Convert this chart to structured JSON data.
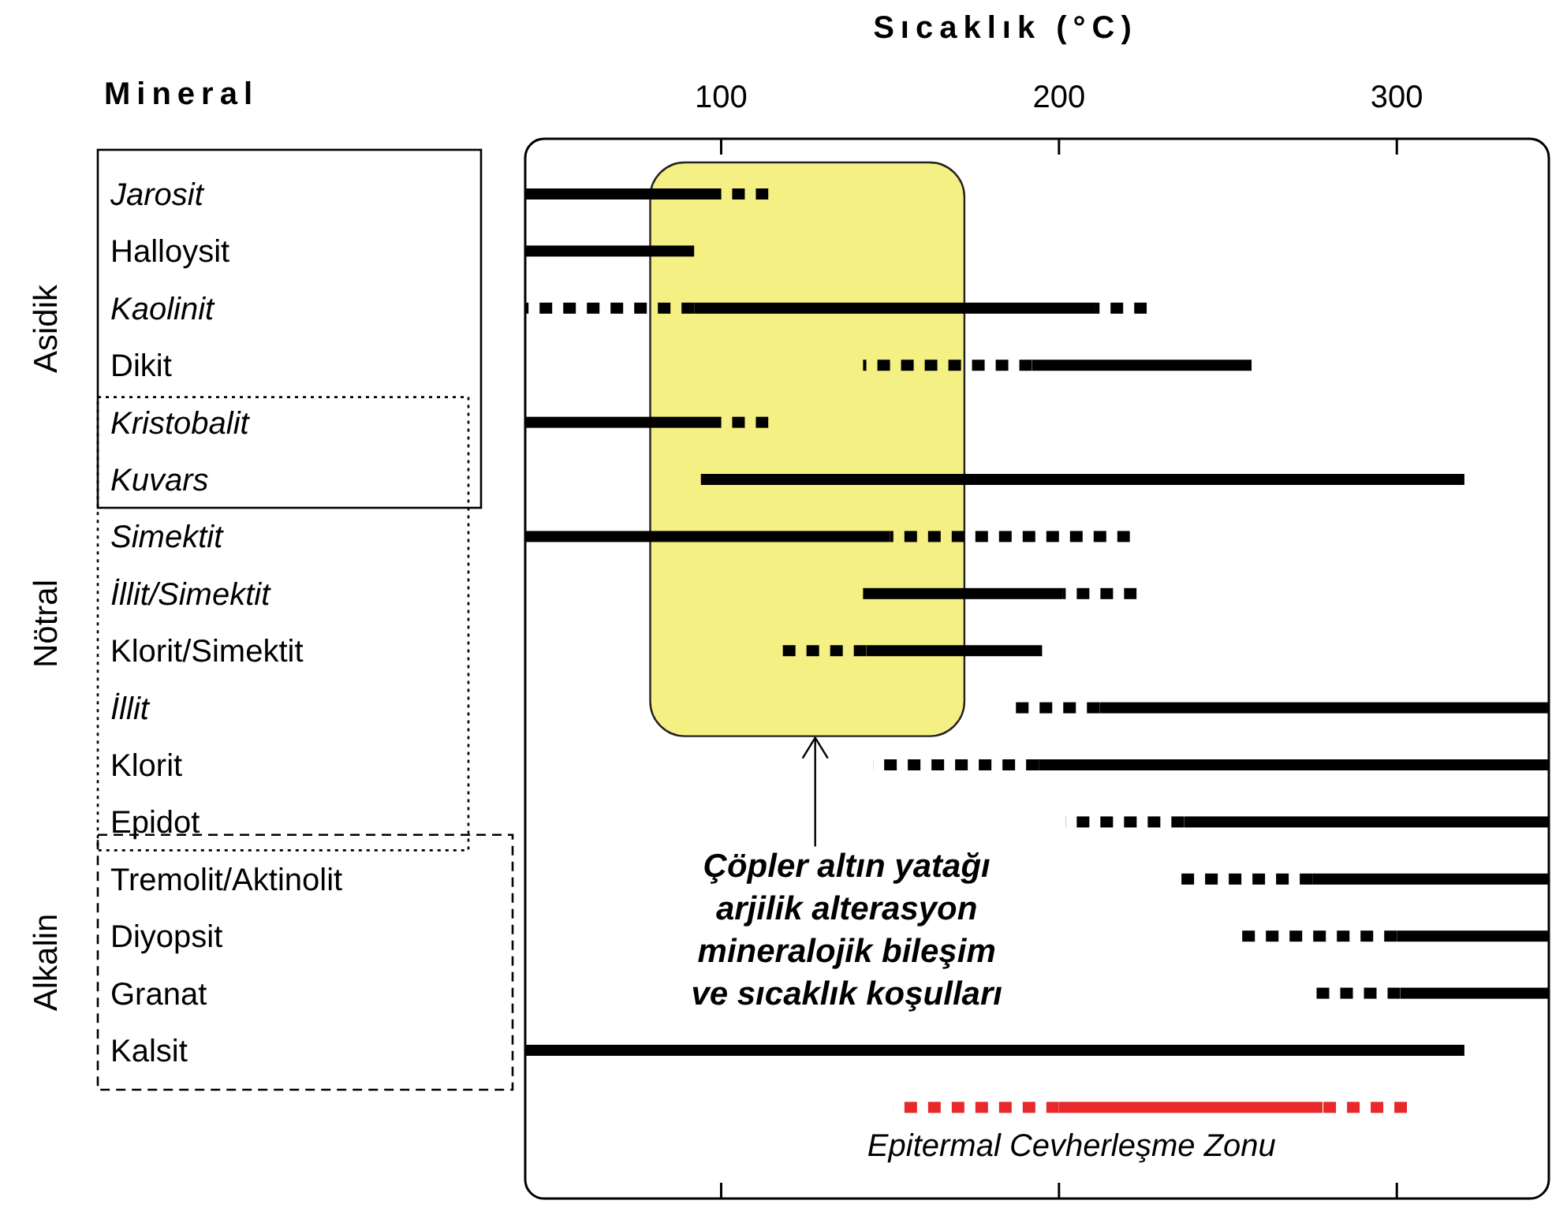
{
  "chart_data": {
    "type": "bar",
    "orientation": "horizontal",
    "xlabel": "Sıcaklık (°C)",
    "ylabel": "Mineral",
    "categories": [
      "Jarosit",
      "Halloysit",
      "Kaolinit",
      "Dikit",
      "Kristobalit",
      "Kuvars",
      "Simektit",
      "İllit/Simektit",
      "Klorit/Simektit",
      "İllit",
      "Klorit",
      "Epidot",
      "Tremolit/Aktinolit",
      "Diyopsit",
      "Granat",
      "Kalsit",
      null
    ],
    "xlim": [
      42,
      345
    ],
    "xticks": [
      100,
      200,
      300
    ],
    "series": [
      {
        "line_style": "dotted",
        "colors": [
          "#000000",
          "#000000",
          "#000000",
          "#000000",
          "#000000",
          "#000000",
          "#000000",
          "#000000",
          "#000000",
          "#000000",
          "#000000",
          "#000000",
          "#000000",
          "#000000",
          "#000000",
          "#000000",
          "#e8282a"
        ],
        "base": [
          null,
          null,
          42,
          142,
          null,
          null,
          null,
          null,
          116,
          185,
          145,
          202,
          236,
          253,
          275,
          null,
          151
        ],
        "values": [
          null,
          null,
          50,
          50,
          null,
          null,
          null,
          null,
          27,
          27,
          49,
          35,
          39,
          47,
          26,
          null,
          49
        ]
      },
      {
        "line_style": "solid",
        "colors": [
          "#000000",
          "#000000",
          "#000000",
          "#000000",
          "#000000",
          "#000000",
          "#000000",
          "#000000",
          "#000000",
          "#000000",
          "#000000",
          "#000000",
          "#000000",
          "#000000",
          "#000000",
          "#000000",
          "#e8282a"
        ],
        "base": [
          42,
          42,
          92,
          192,
          42,
          94,
          42,
          142,
          143,
          212,
          194,
          237,
          275,
          300,
          301,
          42,
          200
        ],
        "values": [
          58,
          50,
          119,
          65,
          58,
          226,
          108,
          59,
          52,
          133,
          151,
          108,
          70,
          45,
          44,
          278,
          78
        ]
      },
      {
        "line_style": "dotted",
        "colors": [
          "#000000",
          "#000000",
          "#000000",
          "#000000",
          "#000000",
          "#000000",
          "#000000",
          "#000000",
          "#000000",
          "#000000",
          "#000000",
          "#000000",
          "#000000",
          "#000000",
          "#000000",
          "#000000",
          "#e8282a"
        ],
        "base": [
          100,
          null,
          211,
          null,
          100,
          null,
          150,
          201,
          null,
          null,
          null,
          null,
          null,
          null,
          null,
          null,
          278
        ],
        "values": [
          14,
          null,
          15,
          null,
          14,
          null,
          71,
          22,
          null,
          null,
          null,
          null,
          null,
          null,
          null,
          null,
          25
        ]
      }
    ],
    "bands": [
      {
        "axis": "x",
        "from": 79,
        "to": 172,
        "label": "Çöpler altın yatağı arjilik alterasyon mineralojik bileşim ve sıcaklık koşulları",
        "color": "#f5f084"
      }
    ],
    "annotations": [
      "Asidik",
      "Nötral",
      "Alkalin",
      "Epitermal Cevherleşme Zonu"
    ]
  }
}
